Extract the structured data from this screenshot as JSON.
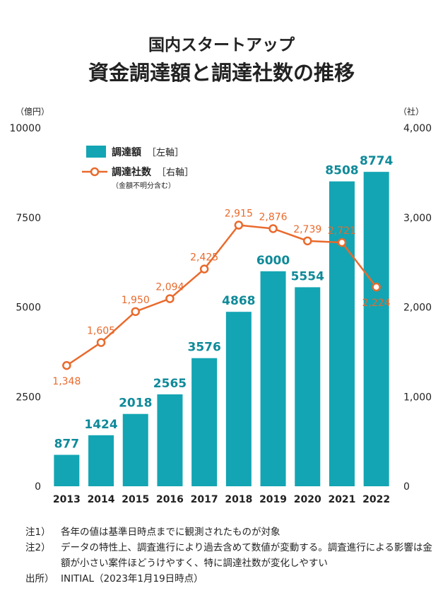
{
  "title_line1": "国内スタートアップ",
  "title_line2": "資金調達額と調達社数の推移",
  "left_unit": "（億円）",
  "right_unit": "（社）",
  "legend": {
    "bar_label": "調達額",
    "bar_axis": "［左軸］",
    "line_label": "調達社数",
    "line_axis": "［右軸］",
    "line_note": "（金額不明分含む）"
  },
  "colors": {
    "bar": "#13a5b3",
    "line": "#e96a2c",
    "bar_text": "#0f8a99"
  },
  "chart_data": {
    "type": "bar",
    "categories": [
      "2013",
      "2014",
      "2015",
      "2016",
      "2017",
      "2018",
      "2019",
      "2020",
      "2021",
      "2022"
    ],
    "series": [
      {
        "name": "調達額",
        "axis": "left",
        "type": "bar",
        "values": [
          877,
          1424,
          2018,
          2565,
          3576,
          4868,
          6000,
          5554,
          8508,
          8774
        ],
        "labels": [
          "877",
          "1424",
          "2018",
          "2565",
          "3576",
          "4868",
          "6000",
          "5554",
          "8508",
          "8774"
        ]
      },
      {
        "name": "調達社数",
        "axis": "right",
        "type": "line",
        "values": [
          1348,
          1605,
          1950,
          2094,
          2425,
          2915,
          2876,
          2739,
          2721,
          2224
        ],
        "labels": [
          "1,348",
          "1,605",
          "1,950",
          "2,094",
          "2,425",
          "2,915",
          "2,876",
          "2,739",
          "2,721",
          "2,224"
        ]
      }
    ],
    "left_axis": {
      "ylim": [
        0,
        10000
      ],
      "ticks": [
        "0",
        "2500",
        "5000",
        "7500",
        "10000"
      ]
    },
    "right_axis": {
      "ylim": [
        0,
        4000
      ],
      "ticks": [
        "0",
        "1,000",
        "2,000",
        "3,000",
        "4,000"
      ]
    }
  },
  "notes": [
    {
      "key": "注1）",
      "text": "各年の値は基準日時点までに観測されたものが対象"
    },
    {
      "key": "注2）",
      "text": "データの特性上、調査進行により過去含めて数値が変動する。調査進行による影響は金額が小さい案件ほどうけやすく、特に調達社数が変化しやすい"
    },
    {
      "key": "出所）",
      "text": "INITIAL（2023年1月19日時点）"
    }
  ]
}
